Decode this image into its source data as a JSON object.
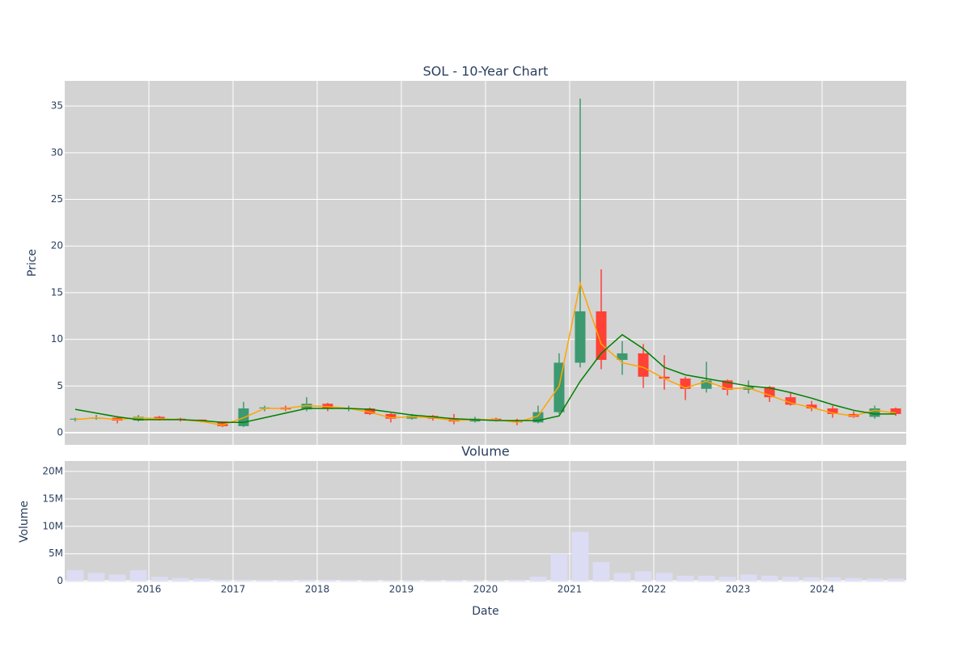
{
  "chart_data": [
    {
      "type": "candlestick",
      "title": "SOL - 10-Year Chart",
      "y_label": "Price",
      "x": [
        2015.125,
        2015.375,
        2015.625,
        2015.875,
        2016.125,
        2016.375,
        2016.625,
        2016.875,
        2017.125,
        2017.375,
        2017.625,
        2017.875,
        2018.125,
        2018.375,
        2018.625,
        2018.875,
        2019.125,
        2019.375,
        2019.625,
        2019.875,
        2020.125,
        2020.375,
        2020.625,
        2020.875,
        2021.125,
        2021.375,
        2021.625,
        2021.875,
        2022.125,
        2022.375,
        2022.625,
        2022.875,
        2023.125,
        2023.375,
        2023.625,
        2023.875,
        2024.125,
        2024.375,
        2024.625,
        2024.875
      ],
      "open": [
        1.4,
        1.5,
        1.6,
        1.3,
        1.7,
        1.5,
        1.4,
        1.2,
        0.7,
        2.6,
        2.7,
        2.5,
        3.1,
        2.6,
        2.6,
        2.0,
        1.5,
        1.8,
        1.5,
        1.2,
        1.5,
        1.3,
        1.1,
        2.2,
        7.5,
        13.0,
        7.8,
        8.5,
        6.0,
        5.8,
        4.7,
        5.6,
        4.6,
        4.9,
        3.8,
        3.0,
        2.6,
        2.0,
        1.7,
        2.6
      ],
      "high": [
        1.6,
        1.9,
        1.7,
        1.9,
        1.8,
        1.6,
        1.4,
        1.2,
        3.3,
        2.9,
        2.9,
        3.8,
        3.2,
        2.9,
        2.7,
        2.1,
        2.0,
        1.9,
        2.0,
        1.7,
        1.6,
        1.5,
        2.9,
        8.5,
        35.8,
        17.5,
        9.8,
        9.5,
        8.3,
        6.0,
        7.6,
        5.7,
        5.6,
        5.0,
        4.3,
        3.4,
        2.9,
        2.3,
        2.9,
        2.7
      ],
      "low": [
        1.2,
        1.4,
        1.0,
        1.2,
        1.3,
        1.2,
        1.1,
        0.6,
        0.6,
        2.3,
        2.3,
        2.3,
        2.3,
        2.3,
        1.9,
        1.1,
        1.4,
        1.3,
        0.9,
        1.1,
        1.2,
        0.8,
        1.0,
        2.0,
        7.0,
        6.8,
        6.2,
        4.8,
        4.6,
        3.5,
        4.3,
        4.0,
        4.2,
        3.3,
        2.9,
        2.3,
        1.6,
        1.6,
        1.5,
        1.8
      ],
      "close": [
        1.5,
        1.6,
        1.3,
        1.7,
        1.5,
        1.4,
        1.2,
        0.7,
        2.6,
        2.7,
        2.5,
        3.1,
        2.6,
        2.6,
        2.0,
        1.5,
        1.8,
        1.5,
        1.2,
        1.5,
        1.3,
        1.1,
        2.2,
        7.5,
        13.0,
        7.8,
        8.5,
        6.0,
        5.8,
        4.7,
        5.6,
        4.6,
        4.9,
        3.8,
        3.0,
        2.6,
        2.0,
        1.7,
        2.6,
        2.0
      ],
      "increasing_color": "#3D9970",
      "decreasing_color": "#FF4136",
      "lines": [
        {
          "color": "orange",
          "values": [
            1.4,
            1.6,
            1.4,
            1.6,
            1.5,
            1.4,
            1.2,
            0.8,
            1.6,
            2.6,
            2.6,
            2.9,
            2.8,
            2.6,
            2.2,
            1.6,
            1.7,
            1.6,
            1.3,
            1.4,
            1.4,
            1.1,
            1.8,
            5.0,
            16.0,
            9.5,
            7.5,
            7.0,
            5.8,
            4.8,
            5.5,
            4.7,
            4.8,
            4.0,
            3.2,
            2.7,
            2.1,
            1.8,
            2.4,
            2.1
          ]
        },
        {
          "color": "green",
          "values": [
            2.5,
            2.1,
            1.7,
            1.4,
            1.4,
            1.4,
            1.3,
            1.1,
            1.1,
            1.6,
            2.1,
            2.6,
            2.6,
            2.6,
            2.5,
            2.2,
            1.9,
            1.7,
            1.5,
            1.4,
            1.3,
            1.3,
            1.3,
            1.8,
            5.5,
            8.5,
            10.5,
            9.0,
            7.0,
            6.2,
            5.8,
            5.4,
            5.0,
            4.8,
            4.3,
            3.7,
            3.0,
            2.4,
            2.0,
            2.0
          ]
        }
      ],
      "xlim": [
        2015,
        2025
      ],
      "xticks": [
        2016,
        2017,
        2018,
        2019,
        2020,
        2021,
        2022,
        2023,
        2024
      ],
      "ylim": [
        -1.3,
        37.7
      ],
      "yticks": [
        0,
        5,
        10,
        15,
        20,
        25,
        30,
        35
      ],
      "grid": true
    },
    {
      "type": "bar",
      "title": "Volume",
      "y_label": "Volume",
      "x_label": "Date",
      "x": [
        2015.125,
        2015.375,
        2015.625,
        2015.875,
        2016.125,
        2016.375,
        2016.625,
        2016.875,
        2017.125,
        2017.375,
        2017.625,
        2017.875,
        2018.125,
        2018.375,
        2018.625,
        2018.875,
        2019.125,
        2019.375,
        2019.625,
        2019.875,
        2020.125,
        2020.375,
        2020.625,
        2020.875,
        2021.125,
        2021.375,
        2021.625,
        2021.875,
        2022.125,
        2022.375,
        2022.625,
        2022.875,
        2023.125,
        2023.375,
        2023.625,
        2023.875,
        2024.125,
        2024.375,
        2024.625,
        2024.875
      ],
      "values": [
        2000000,
        1500000,
        1200000,
        2000000,
        800000,
        600000,
        500000,
        300000,
        300000,
        250000,
        250000,
        300000,
        300000,
        250000,
        200000,
        200000,
        200000,
        150000,
        200000,
        200000,
        200000,
        300000,
        800000,
        5000000,
        9000000,
        3500000,
        1500000,
        1800000,
        1500000,
        1000000,
        1000000,
        800000,
        1200000,
        1000000,
        800000,
        700000,
        700000,
        600000,
        500000,
        500000
      ],
      "color": "#dcdcf5",
      "xlim": [
        2015,
        2025
      ],
      "xticks": [
        2016,
        2017,
        2018,
        2019,
        2020,
        2021,
        2022,
        2023,
        2024
      ],
      "ylim": [
        -200000,
        21900000
      ],
      "yticks": [
        0,
        {
          "value": 5000000,
          "label": "5M"
        },
        {
          "value": 10000000,
          "label": "10M"
        },
        {
          "value": 15000000,
          "label": "15M"
        },
        {
          "value": 20000000,
          "label": "20M"
        }
      ],
      "grid": true
    }
  ]
}
